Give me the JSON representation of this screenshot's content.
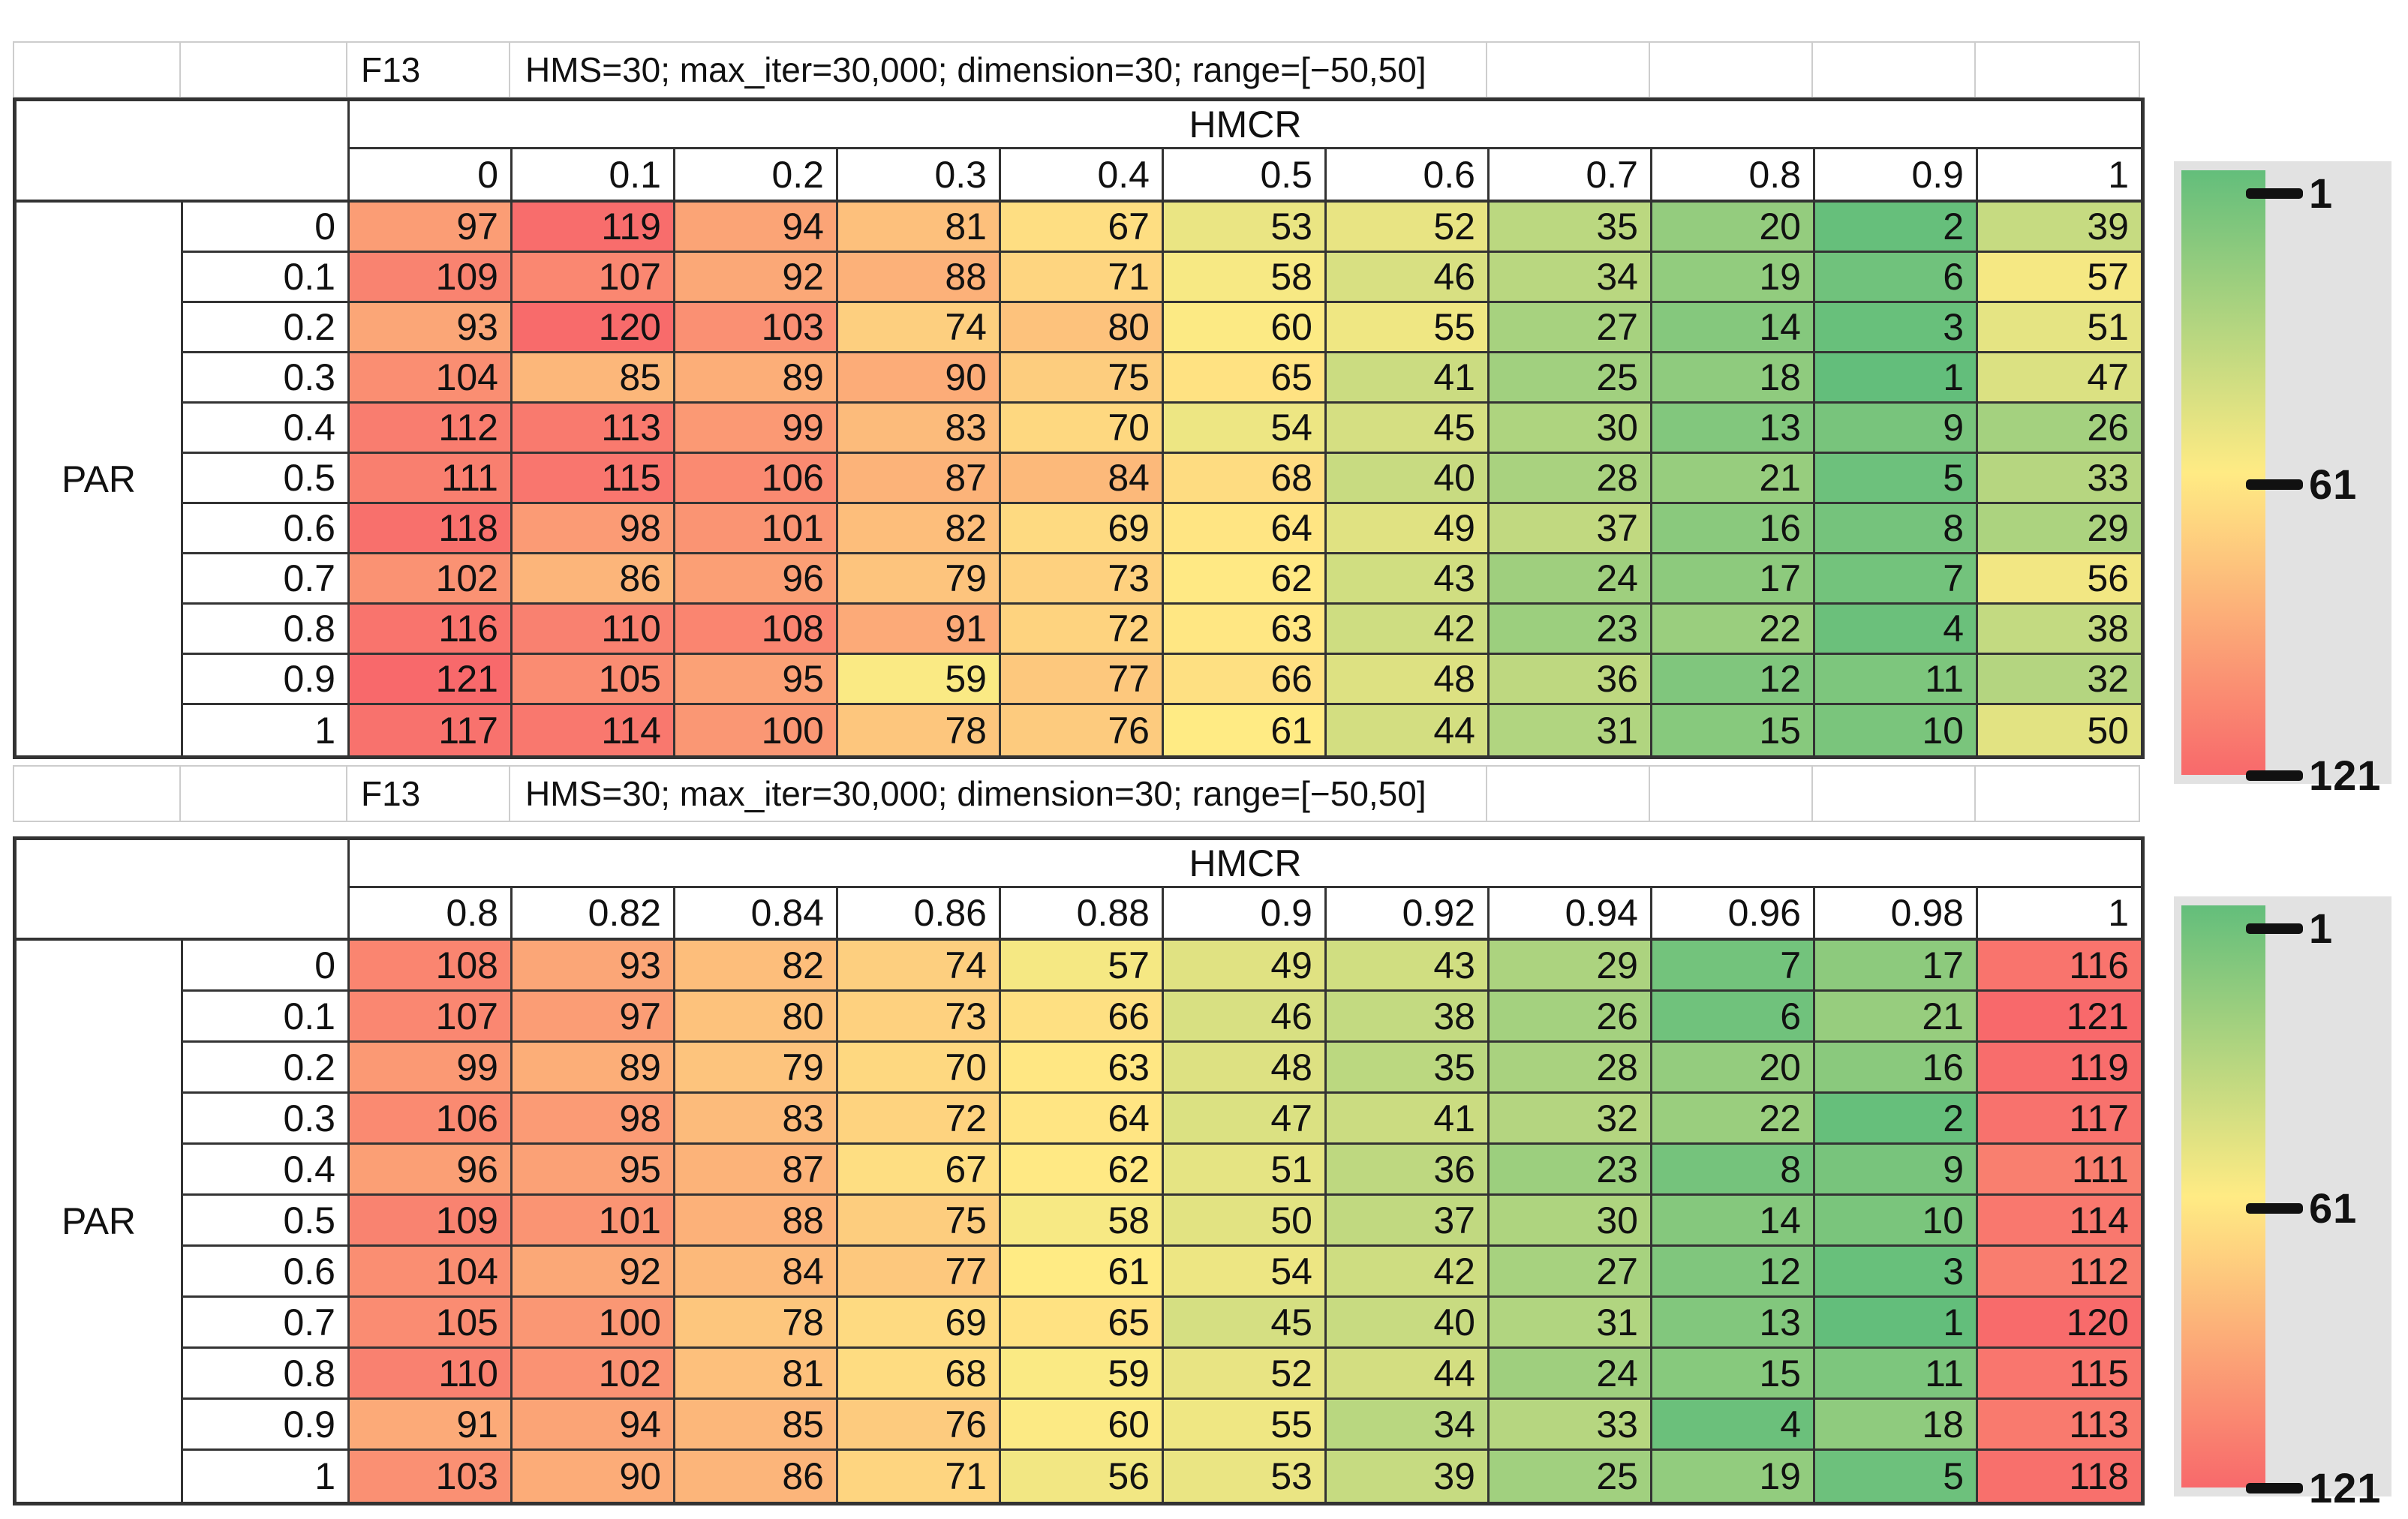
{
  "chart_data": [
    {
      "type": "heatmap",
      "title": "F13",
      "subtitle": "HMS=30; max_iter=30,000; dimension=30; range=[−50,50]",
      "xlabel": "HMCR",
      "ylabel": "PAR",
      "x_ticks": [
        "0",
        "0.1",
        "0.2",
        "0.3",
        "0.4",
        "0.5",
        "0.6",
        "0.7",
        "0.8",
        "0.9",
        "1"
      ],
      "y_ticks": [
        "0",
        "0.1",
        "0.2",
        "0.3",
        "0.4",
        "0.5",
        "0.6",
        "0.7",
        "0.8",
        "0.9",
        "1"
      ],
      "values": [
        [
          97,
          119,
          94,
          81,
          67,
          53,
          52,
          35,
          20,
          2,
          39
        ],
        [
          109,
          107,
          92,
          88,
          71,
          58,
          46,
          34,
          19,
          6,
          57
        ],
        [
          93,
          120,
          103,
          74,
          80,
          60,
          55,
          27,
          14,
          3,
          51
        ],
        [
          104,
          85,
          89,
          90,
          75,
          65,
          41,
          25,
          18,
          1,
          47
        ],
        [
          112,
          113,
          99,
          83,
          70,
          54,
          45,
          30,
          13,
          9,
          26
        ],
        [
          111,
          115,
          106,
          87,
          84,
          68,
          40,
          28,
          21,
          5,
          33
        ],
        [
          118,
          98,
          101,
          82,
          69,
          64,
          49,
          37,
          16,
          8,
          29
        ],
        [
          102,
          86,
          96,
          79,
          73,
          62,
          43,
          24,
          17,
          7,
          56
        ],
        [
          116,
          110,
          108,
          91,
          72,
          63,
          42,
          23,
          22,
          4,
          38
        ],
        [
          121,
          105,
          95,
          59,
          77,
          66,
          48,
          36,
          12,
          11,
          32
        ],
        [
          117,
          114,
          100,
          78,
          76,
          61,
          44,
          31,
          15,
          10,
          50
        ]
      ],
      "color_scale": {
        "min_value": 1,
        "mid_value": 61,
        "max_value": 121,
        "min_color": "#63BE7B",
        "mid_color": "#FFEB84",
        "max_color": "#F8696B"
      },
      "legend_tick_labels": [
        "1",
        "61",
        "121"
      ],
      "legend_position": "right"
    },
    {
      "type": "heatmap",
      "title": "F13",
      "subtitle": "HMS=30; max_iter=30,000; dimension=30; range=[−50,50]",
      "xlabel": "HMCR",
      "ylabel": "PAR",
      "x_ticks": [
        "0.8",
        "0.82",
        "0.84",
        "0.86",
        "0.88",
        "0.9",
        "0.92",
        "0.94",
        "0.96",
        "0.98",
        "1"
      ],
      "y_ticks": [
        "0",
        "0.1",
        "0.2",
        "0.3",
        "0.4",
        "0.5",
        "0.6",
        "0.7",
        "0.8",
        "0.9",
        "1"
      ],
      "values": [
        [
          108,
          93,
          82,
          74,
          57,
          49,
          43,
          29,
          7,
          17,
          116
        ],
        [
          107,
          97,
          80,
          73,
          66,
          46,
          38,
          26,
          6,
          21,
          121
        ],
        [
          99,
          89,
          79,
          70,
          63,
          48,
          35,
          28,
          20,
          16,
          119
        ],
        [
          106,
          98,
          83,
          72,
          64,
          47,
          41,
          32,
          22,
          2,
          117
        ],
        [
          96,
          95,
          87,
          67,
          62,
          51,
          36,
          23,
          8,
          9,
          111
        ],
        [
          109,
          101,
          88,
          75,
          58,
          50,
          37,
          30,
          14,
          10,
          114
        ],
        [
          104,
          92,
          84,
          77,
          61,
          54,
          42,
          27,
          12,
          3,
          112
        ],
        [
          105,
          100,
          78,
          69,
          65,
          45,
          40,
          31,
          13,
          1,
          120
        ],
        [
          110,
          102,
          81,
          68,
          59,
          52,
          44,
          24,
          15,
          11,
          115
        ],
        [
          91,
          94,
          85,
          76,
          60,
          55,
          34,
          33,
          4,
          18,
          113
        ],
        [
          103,
          90,
          86,
          71,
          56,
          53,
          39,
          25,
          19,
          5,
          118
        ]
      ],
      "color_scale": {
        "min_value": 1,
        "mid_value": 61,
        "max_value": 121,
        "min_color": "#63BE7B",
        "mid_color": "#FFEB84",
        "max_color": "#F8696B"
      },
      "legend_tick_labels": [
        "1",
        "61",
        "121"
      ],
      "legend_position": "right"
    }
  ],
  "legend": {
    "background": "#e2e2e2"
  }
}
